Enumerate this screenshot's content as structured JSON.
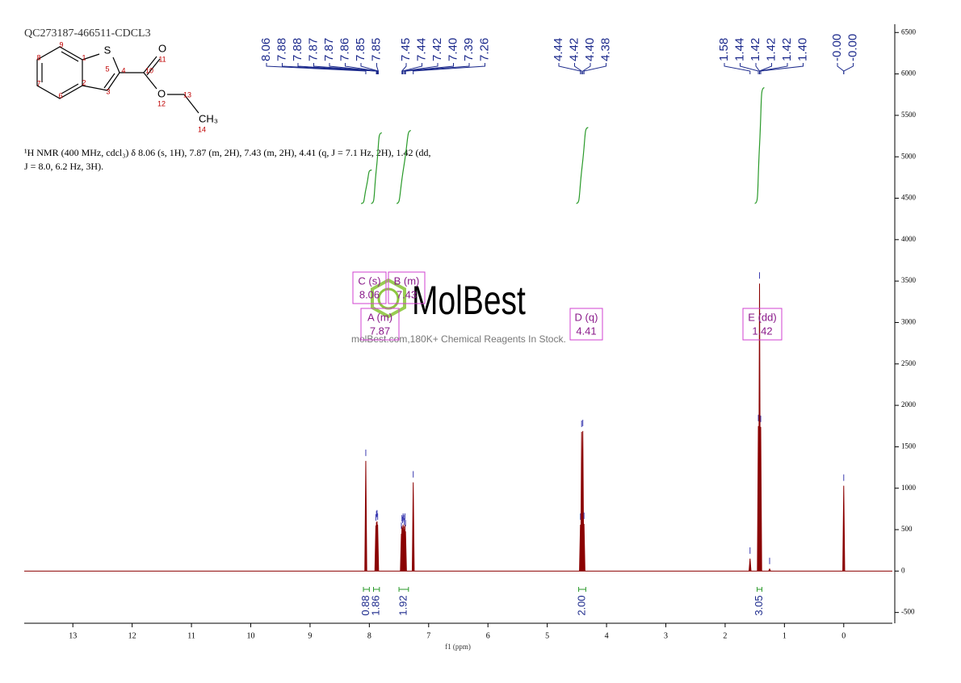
{
  "chart_data": {
    "type": "nmr",
    "title": "QC273187-466511-CDCL3",
    "x_label": "f1 (ppm)",
    "description": [
      "¹H NMR (400 MHz, cdcl₃) δ 8.06 (s, 1H), 7.87 (m, 2H), 7.43 (m, 2H), 4.41 (q, J = 7.1 Hz, 2H), 1.42 (dd,",
      "J = 8.0, 6.2 Hz, 3H)."
    ],
    "xlim": [
      13.82,
      -0.82
    ],
    "xticks": [
      13,
      12,
      11,
      10,
      9,
      8,
      7,
      6,
      5,
      4,
      3,
      2,
      1,
      0
    ],
    "ylim": [
      -630,
      6600
    ],
    "yticks": [
      -500,
      0,
      500,
      1000,
      1500,
      2000,
      2500,
      3000,
      3500,
      4000,
      4500,
      5000,
      5500,
      6000,
      6500
    ],
    "series": [
      {
        "color": "#8b0000",
        "x": [
          8.06,
          7.89,
          7.88,
          7.87,
          7.86,
          7.46,
          7.45,
          7.44,
          7.43,
          7.42,
          7.41,
          7.4,
          7.39,
          7.26,
          4.44,
          4.42,
          4.4,
          4.38,
          1.58,
          1.44,
          1.42,
          1.4,
          1.25,
          0.0
        ],
        "values": [
          1330,
          550,
          590,
          600,
          560,
          450,
          540,
          520,
          560,
          540,
          500,
          560,
          480,
          1070,
          560,
          1680,
          1690,
          570,
          150,
          1750,
          3470,
          1740,
          25,
          1030
        ]
      }
    ],
    "peak_labels": [
      {
        "value": 8.06,
        "label": "8.06"
      },
      {
        "value": 7.88,
        "label": "7.88"
      },
      {
        "value": 7.88,
        "label": "7.88"
      },
      {
        "value": 7.87,
        "label": "7.87"
      },
      {
        "value": 7.87,
        "label": "7.87"
      },
      {
        "value": 7.86,
        "label": "7.86"
      },
      {
        "value": 7.85,
        "label": "7.85"
      },
      {
        "value": 7.85,
        "label": "7.85"
      },
      {
        "value": 7.45,
        "label": "7.45"
      },
      {
        "value": 7.44,
        "label": "7.44"
      },
      {
        "value": 7.42,
        "label": "7.42"
      },
      {
        "value": 7.4,
        "label": "7.40"
      },
      {
        "value": 7.39,
        "label": "7.39"
      },
      {
        "value": 7.26,
        "label": "7.26"
      },
      {
        "value": 4.44,
        "label": "4.44"
      },
      {
        "value": 4.42,
        "label": "4.42"
      },
      {
        "value": 4.4,
        "label": "4.40"
      },
      {
        "value": 4.38,
        "label": "4.38"
      },
      {
        "value": 1.58,
        "label": "1.58"
      },
      {
        "value": 1.44,
        "label": "1.44"
      },
      {
        "value": 1.42,
        "label": "1.42"
      },
      {
        "value": 1.42,
        "label": "1.42"
      },
      {
        "value": 1.42,
        "label": "1.42"
      },
      {
        "value": 1.4,
        "label": "1.40"
      },
      {
        "value": 0,
        "label": "-0.00"
      },
      {
        "value": 0,
        "label": "-0.00"
      }
    ],
    "integrals": {
      "ranges": [
        [
          8.1,
          8.0
        ],
        [
          7.93,
          7.83
        ],
        [
          7.5,
          7.34
        ],
        [
          4.47,
          4.35
        ],
        [
          1.46,
          1.38
        ]
      ],
      "values": [
        0.88,
        1.86,
        1.92,
        2,
        3.05
      ],
      "value_labels": [
        "0.88",
        "1.86",
        "1.92",
        "2.00",
        "3.05"
      ]
    },
    "multiplets": [
      {
        "name": "C (s)",
        "shift": "8.06"
      },
      {
        "name": "B (m)",
        "shift": "7.43"
      },
      {
        "name": "A (m)",
        "shift": "7.87"
      },
      {
        "name": "D (q)",
        "shift": "4.41"
      },
      {
        "name": "E (dd)",
        "shift": "1.42"
      }
    ],
    "molecule": {
      "atoms": [
        "S",
        "O",
        "O",
        "CH₃"
      ],
      "numbers": [
        1,
        2,
        3,
        4,
        5,
        6,
        7,
        8,
        9,
        10,
        11,
        12,
        13,
        14
      ]
    },
    "watermark": {
      "brand": "MolBest",
      "tagline": "molBest.com,180K+ Chemical Reagents In Stock."
    }
  }
}
